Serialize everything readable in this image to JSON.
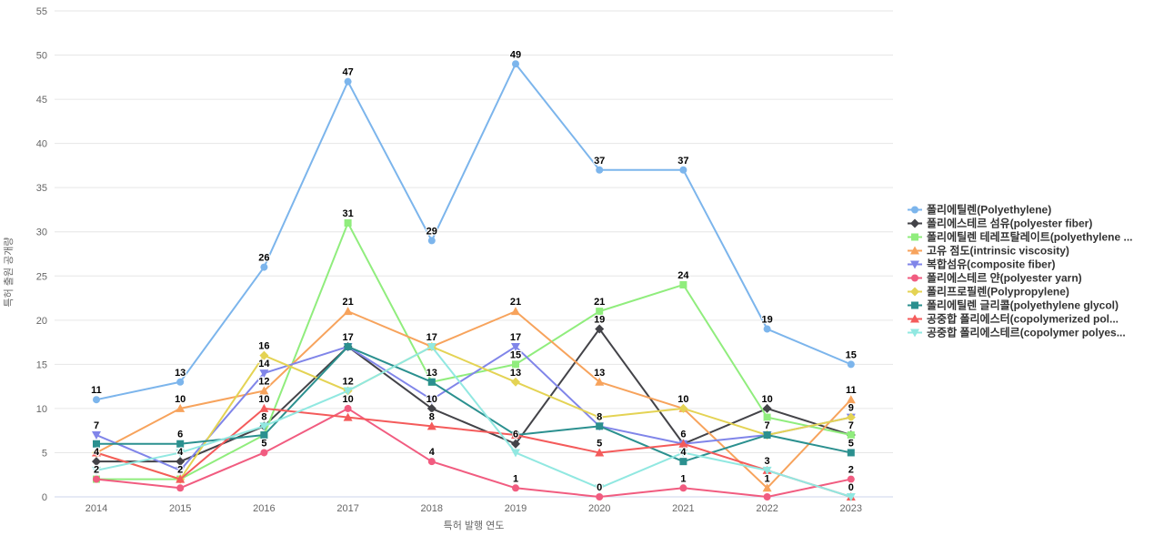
{
  "chart_data": {
    "type": "line",
    "title": "",
    "xlabel": "특허 발행 연도",
    "ylabel": "특허 출원 공개량",
    "ylim": [
      0,
      55
    ],
    "ytick_step": 5,
    "grid": true,
    "legend_position": "right",
    "background_color": "#ffffff",
    "grid_color": "#e6e6e6",
    "axis_line_color": "#ccd6eb",
    "axis_text_color": "#666666",
    "legend_text_color": "#333333",
    "categories": [
      "2014",
      "2015",
      "2016",
      "2017",
      "2018",
      "2019",
      "2020",
      "2021",
      "2022",
      "2023"
    ],
    "series": [
      {
        "name": "폴리에틸렌(Polyethylene)",
        "color": "#7cb5ec",
        "marker": "circle",
        "values": [
          11,
          13,
          26,
          47,
          29,
          49,
          37,
          37,
          19,
          15
        ]
      },
      {
        "name": "폴리에스테르 섬유(polyester fiber)",
        "color": "#434348",
        "marker": "diamond",
        "values": [
          4,
          4,
          8,
          17,
          10,
          6,
          19,
          6,
          10,
          7
        ]
      },
      {
        "name": "폴리에틸렌 테레프탈레이트(polyethylene ...",
        "color": "#90ed7d",
        "marker": "square",
        "values": [
          2,
          2,
          7,
          31,
          13,
          15,
          21,
          24,
          9,
          7
        ]
      },
      {
        "name": "고유 점도(intrinsic viscosity)",
        "color": "#f7a35c",
        "marker": "triangle",
        "values": [
          5,
          10,
          12,
          21,
          17,
          21,
          13,
          10,
          1,
          11
        ]
      },
      {
        "name": "복합섬유(composite fiber)",
        "color": "#8085e9",
        "marker": "triangle-down",
        "values": [
          7,
          3,
          14,
          17,
          11,
          17,
          8,
          6,
          7,
          9
        ]
      },
      {
        "name": "폴리에스테르 얀(polyester yarn)",
        "color": "#f15c80",
        "marker": "circle",
        "values": [
          2,
          1,
          5,
          10,
          4,
          1,
          0,
          1,
          0,
          2
        ]
      },
      {
        "name": "폴리프로필렌(Polypropylene)",
        "color": "#e4d354",
        "marker": "diamond",
        "values": [
          5,
          2,
          16,
          12,
          17,
          13,
          9,
          10,
          7,
          9
        ]
      },
      {
        "name": "폴리에틸렌 글리콜(polyethylene glycol)",
        "color": "#2b908f",
        "marker": "square",
        "values": [
          6,
          6,
          7,
          17,
          13,
          7,
          8,
          4,
          7,
          5
        ]
      },
      {
        "name": "공중합 폴리에스터(copolymerized pol...",
        "color": "#f45b5b",
        "marker": "triangle",
        "values": [
          5,
          2,
          10,
          9,
          8,
          7,
          5,
          6,
          3,
          0
        ]
      },
      {
        "name": "공중합 폴리에스테르(copolymer polyes...",
        "color": "#91e8e1",
        "marker": "triangle-down",
        "values": [
          3,
          5,
          8,
          12,
          17,
          5,
          1,
          5,
          3,
          0
        ]
      }
    ]
  }
}
